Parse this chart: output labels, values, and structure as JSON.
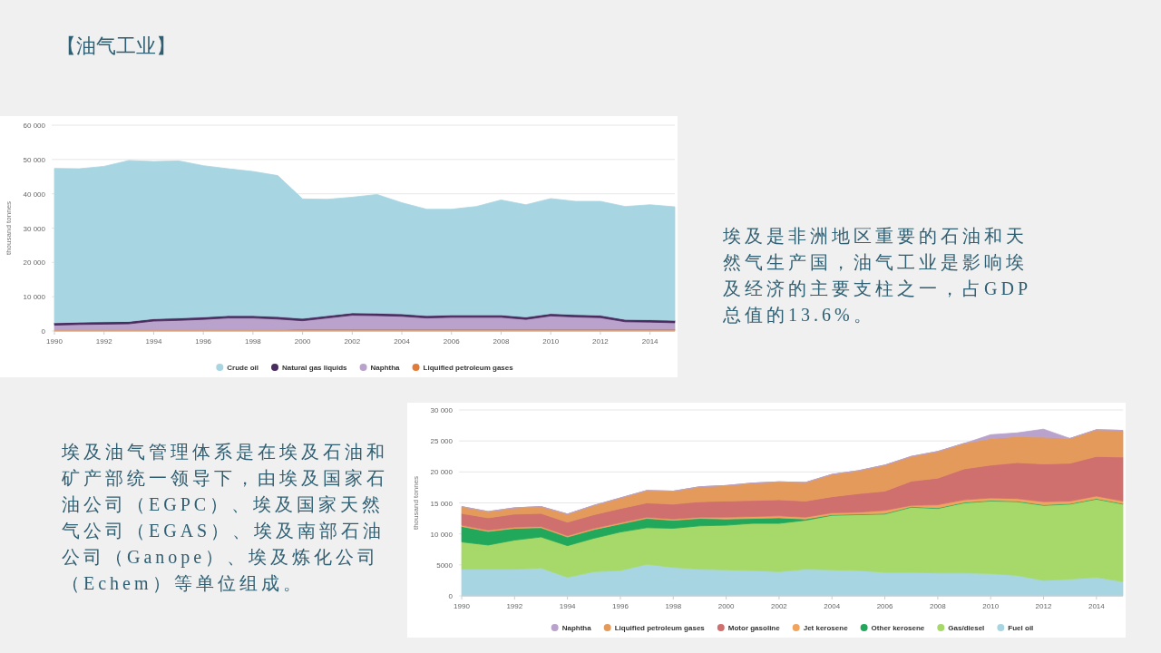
{
  "chart_data": [
    {
      "type": "other",
      "title": "【油气工业】",
      "annotations": [
        "埃及是非洲地区重要的石油和天然气生产国，油气工业是影响埃及经济的主要支柱之一，占GDP总值的13.6%。",
        "埃及油气管理体系是在埃及石油和矿产部统一领导下，由埃及国家石油公司（EGPC）、埃及国家天然气公司（EGAS）、埃及南部石油公司（Ganope）、埃及炼化公司（Echem）等单位组成。"
      ]
    },
    {
      "type": "area",
      "stacked": true,
      "ylabel": "thousand tonnes",
      "legend": "bottom",
      "grid": "y",
      "x": [
        1990,
        1991,
        1992,
        1993,
        1994,
        1995,
        1996,
        1997,
        1998,
        1999,
        2000,
        2001,
        2002,
        2003,
        2004,
        2005,
        2006,
        2007,
        2008,
        2009,
        2010,
        2011,
        2012,
        2013,
        2014,
        2015
      ],
      "xlim": [
        1990,
        2015
      ],
      "xticks": [
        1990,
        1992,
        1994,
        1996,
        1998,
        2000,
        2002,
        2004,
        2006,
        2008,
        2010,
        2012,
        2014
      ],
      "ylim": [
        0,
        60000
      ],
      "yticks": [
        {
          "value": 0,
          "label": "0"
        },
        {
          "value": 10000,
          "label": "10 000"
        },
        {
          "value": 20000,
          "label": "20 000"
        },
        {
          "value": 30000,
          "label": "30 000"
        },
        {
          "value": 40000,
          "label": "40 000"
        },
        {
          "value": 50000,
          "label": "50 000"
        },
        {
          "value": 60000,
          "label": "60 000"
        }
      ],
      "series": [
        {
          "name": "Liquified petroleum gases",
          "color": "#e07b39",
          "values": [
            400,
            400,
            400,
            400,
            400,
            400,
            400,
            400,
            400,
            400,
            600,
            600,
            600,
            600,
            600,
            600,
            600,
            600,
            600,
            600,
            600,
            600,
            600,
            600,
            600,
            600
          ]
        },
        {
          "name": "Naphtha",
          "color": "#b9a2cc",
          "values": [
            1300,
            1500,
            1600,
            1700,
            2500,
            2700,
            3000,
            3400,
            3400,
            3100,
            2400,
            3200,
            4000,
            3900,
            3700,
            3200,
            3400,
            3400,
            3400,
            2800,
            3800,
            3500,
            3300,
            2100,
            2000,
            1800
          ]
        },
        {
          "name": "Natural gas liquids",
          "color": "#4a2c5e",
          "values": [
            700,
            700,
            700,
            700,
            700,
            700,
            700,
            700,
            700,
            700,
            700,
            700,
            700,
            700,
            700,
            700,
            700,
            700,
            700,
            700,
            700,
            700,
            700,
            700,
            700,
            700
          ]
        },
        {
          "name": "Crude oil",
          "color": "#a8d5e2",
          "values": [
            45000,
            44700,
            45300,
            46900,
            45800,
            45800,
            44100,
            42800,
            42000,
            41100,
            34800,
            33900,
            33700,
            34600,
            32400,
            31000,
            30800,
            31600,
            33500,
            32700,
            33500,
            33000,
            33200,
            32900,
            33500,
            33100
          ]
        }
      ]
    },
    {
      "type": "area",
      "stacked": true,
      "ylabel": "thousand tonnes",
      "legend": "bottom",
      "grid": "y",
      "x": [
        1990,
        1991,
        1992,
        1993,
        1994,
        1995,
        1996,
        1997,
        1998,
        1999,
        2000,
        2001,
        2002,
        2003,
        2004,
        2005,
        2006,
        2007,
        2008,
        2009,
        2010,
        2011,
        2012,
        2013,
        2014,
        2015
      ],
      "xlim": [
        1990,
        2015
      ],
      "xticks": [
        1990,
        1992,
        1994,
        1996,
        1998,
        2000,
        2002,
        2004,
        2006,
        2008,
        2010,
        2012,
        2014
      ],
      "ylim": [
        0,
        30000
      ],
      "yticks": [
        {
          "value": 0,
          "label": "0"
        },
        5000,
        {
          "value": 10000,
          "label": "10 000"
        },
        {
          "value": 15000,
          "label": "15 000"
        },
        {
          "value": 20000,
          "label": "20 000"
        },
        {
          "value": 25000,
          "label": "25 000"
        },
        {
          "value": 30000,
          "label": "30 000"
        }
      ],
      "series": [
        {
          "name": "Fuel oil",
          "color": "#a8d5e2",
          "values": [
            4300,
            4300,
            4300,
            4500,
            3000,
            3900,
            4100,
            5100,
            4600,
            4300,
            4200,
            4100,
            3900,
            4300,
            4200,
            4100,
            3800,
            3800,
            3700,
            3700,
            3600,
            3300,
            2500,
            2700,
            3000,
            2300
          ]
        },
        {
          "name": "Gas/diesel",
          "color": "#a6d96a",
          "values": [
            4400,
            3900,
            4700,
            5000,
            5100,
            5400,
            6200,
            5900,
            6300,
            7000,
            7200,
            7600,
            7800,
            7900,
            8800,
            9000,
            9400,
            10500,
            10400,
            11300,
            11700,
            11900,
            12100,
            12100,
            12600,
            12500
          ]
        },
        {
          "name": "Other kerosene",
          "color": "#22a85a",
          "values": [
            2500,
            2200,
            1900,
            1500,
            1400,
            1400,
            1300,
            1500,
            1300,
            1200,
            1000,
            800,
            900,
            200,
            100,
            100,
            100,
            100,
            100,
            100,
            100,
            100,
            100,
            100,
            100,
            100
          ]
        },
        {
          "name": "Jet kerosene",
          "color": "#f0a45e",
          "values": [
            200,
            200,
            200,
            200,
            200,
            200,
            200,
            200,
            200,
            200,
            300,
            300,
            300,
            300,
            300,
            300,
            500,
            200,
            500,
            400,
            400,
            400,
            500,
            400,
            400,
            400
          ]
        },
        {
          "name": "Motor gasoline",
          "color": "#d0706e",
          "values": [
            1900,
            2000,
            2100,
            2100,
            2200,
            2200,
            2300,
            2300,
            2400,
            2500,
            2600,
            2600,
            2600,
            2600,
            2600,
            3000,
            3100,
            3900,
            4300,
            5000,
            5300,
            5800,
            6100,
            6100,
            6400,
            7100
          ]
        },
        {
          "name": "Liquified petroleum gases",
          "color": "#e39a5a",
          "values": [
            1100,
            1000,
            1000,
            1100,
            1300,
            1500,
            1700,
            2000,
            2100,
            2400,
            2500,
            2800,
            2900,
            3000,
            3600,
            3700,
            4200,
            4000,
            4300,
            4100,
            4300,
            4200,
            4300,
            4000,
            4300,
            4300
          ]
        },
        {
          "name": "Naphtha",
          "color": "#b9a2cc",
          "values": [
            0,
            0,
            0,
            0,
            0,
            0,
            0,
            0,
            0,
            0,
            0,
            0,
            0,
            0,
            0,
            0,
            0,
            0,
            0,
            0,
            600,
            600,
            1300,
            0,
            0,
            0
          ]
        }
      ]
    }
  ]
}
